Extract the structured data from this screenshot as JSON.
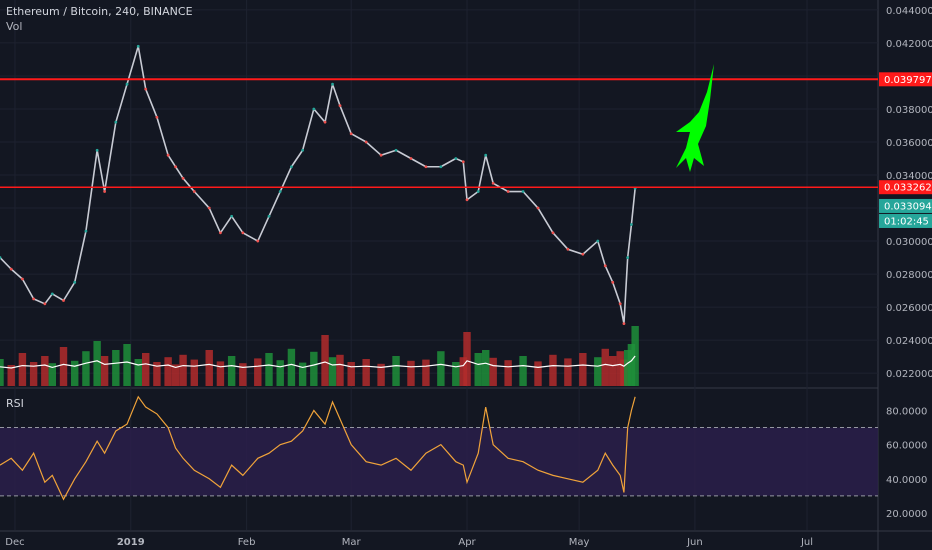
{
  "header": {
    "title": "Ethereum / Bitcoin, 240, BINANCE",
    "volume_label": "Vol",
    "rsi_label": "RSI"
  },
  "colors": {
    "background": "#131722",
    "grid": "#1e2230",
    "candle_up": "#26a69a",
    "candle_down": "#ef5350",
    "price_wick": "#c8cbd4",
    "volume_up": "#1f8f3a",
    "volume_down": "#b32b2b",
    "volume_ma": "#ffffff",
    "resistance": "#ff1a1a",
    "rsi_line": "#f0a33a",
    "rsi_band": "#2a1f4a",
    "rocket": "#00ff00",
    "tag_last": "#26a69a"
  },
  "icons": {
    "annotation": "rocket-icon"
  },
  "chart_data": [
    {
      "type": "line",
      "title": "Ethereum / Bitcoin, 240, BINANCE",
      "x_ticks": [
        "Dec",
        "2019",
        "Feb",
        "Mar",
        "Apr",
        "May",
        "Jun",
        "Jul"
      ],
      "y_ticks": [
        "0.044000",
        "0.042000",
        "0.040000",
        "0.038000",
        "0.036000",
        "0.034000",
        "0.032000",
        "0.030000",
        "0.028000",
        "0.026000",
        "0.024000",
        "0.022000"
      ],
      "ylim": [
        0.0211,
        0.0446
      ],
      "xlim": [
        "2018-11-27",
        "2019-07-20"
      ],
      "grid": true,
      "series": [
        {
          "x": [
            "2018-11-27",
            "2018-11-30",
            "2018-12-03",
            "2018-12-06",
            "2018-12-09",
            "2018-12-11",
            "2018-12-14",
            "2018-12-17",
            "2018-12-20",
            "2018-12-23",
            "2018-12-25",
            "2018-12-28",
            "2018-12-31",
            "2019-01-03",
            "2019-01-05",
            "2019-01-08",
            "2019-01-11",
            "2019-01-13",
            "2019-01-15",
            "2019-01-18",
            "2019-01-22",
            "2019-01-25",
            "2019-01-28",
            "2019-01-31",
            "2019-02-04",
            "2019-02-07",
            "2019-02-10",
            "2019-02-13",
            "2019-02-16",
            "2019-02-19",
            "2019-02-22",
            "2019-02-24",
            "2019-02-26",
            "2019-03-01",
            "2019-03-05",
            "2019-03-09",
            "2019-03-13",
            "2019-03-17",
            "2019-03-21",
            "2019-03-25",
            "2019-03-29",
            "2019-03-31",
            "2019-04-01",
            "2019-04-04",
            "2019-04-06",
            "2019-04-08",
            "2019-04-12",
            "2019-04-16",
            "2019-04-20",
            "2019-04-24",
            "2019-04-28",
            "2019-05-02",
            "2019-05-06",
            "2019-05-08",
            "2019-05-10",
            "2019-05-12",
            "2019-05-13",
            "2019-05-14",
            "2019-05-15",
            "2019-05-16"
          ],
          "values": [
            0.029,
            0.0283,
            0.0277,
            0.0265,
            0.0262,
            0.0268,
            0.0264,
            0.0275,
            0.0306,
            0.0355,
            0.033,
            0.0372,
            0.0395,
            0.0418,
            0.0392,
            0.0375,
            0.0352,
            0.0345,
            0.0338,
            0.033,
            0.032,
            0.0305,
            0.0315,
            0.0305,
            0.03,
            0.0315,
            0.033,
            0.0345,
            0.0355,
            0.038,
            0.0372,
            0.0395,
            0.0382,
            0.0365,
            0.036,
            0.0352,
            0.0355,
            0.035,
            0.0345,
            0.0345,
            0.035,
            0.0348,
            0.0325,
            0.033,
            0.0352,
            0.0335,
            0.033,
            0.033,
            0.032,
            0.0305,
            0.0295,
            0.0292,
            0.03,
            0.0285,
            0.0275,
            0.0262,
            0.025,
            0.029,
            0.031,
            0.0332
          ]
        }
      ],
      "annotations": [
        {
          "label": "0.039797",
          "value": 0.039797,
          "kind": "resistance"
        },
        {
          "label": "0.033262",
          "value": 0.033262,
          "kind": "resistance"
        },
        {
          "label": "0.033094",
          "value": 0.033094,
          "kind": "last-price"
        },
        {
          "label": "01:02:45",
          "kind": "countdown"
        }
      ]
    },
    {
      "type": "bar",
      "title": "Vol",
      "description_in_units": "relative volume, 0-1",
      "values": [
        0.45,
        0.35,
        0.55,
        0.4,
        0.5,
        0.38,
        0.65,
        0.42,
        0.58,
        0.75,
        0.5,
        0.6,
        0.7,
        0.45,
        0.55,
        0.4,
        0.48,
        0.36,
        0.52,
        0.44,
        0.6,
        0.41,
        0.5,
        0.38,
        0.46,
        0.55,
        0.43,
        0.62,
        0.39,
        0.57,
        0.85,
        0.48,
        0.52,
        0.4,
        0.45,
        0.37,
        0.5,
        0.42,
        0.44,
        0.58,
        0.4,
        0.48,
        0.9,
        0.55,
        0.6,
        0.47,
        0.43,
        0.5,
        0.41,
        0.52,
        0.46,
        0.55,
        0.48,
        0.62,
        0.5,
        0.58,
        0.44,
        0.6,
        0.7,
        1.0
      ],
      "ma_values": [
        0.32,
        0.3,
        0.34,
        0.33,
        0.35,
        0.31,
        0.36,
        0.33,
        0.38,
        0.42,
        0.36,
        0.38,
        0.4,
        0.35,
        0.37,
        0.33,
        0.35,
        0.31,
        0.34,
        0.33,
        0.36,
        0.32,
        0.34,
        0.31,
        0.33,
        0.35,
        0.32,
        0.36,
        0.31,
        0.35,
        0.4,
        0.35,
        0.36,
        0.32,
        0.33,
        0.31,
        0.34,
        0.32,
        0.33,
        0.36,
        0.32,
        0.34,
        0.42,
        0.36,
        0.38,
        0.34,
        0.32,
        0.34,
        0.31,
        0.34,
        0.33,
        0.35,
        0.33,
        0.36,
        0.34,
        0.36,
        0.33,
        0.38,
        0.42,
        0.5
      ]
    },
    {
      "type": "line",
      "title": "RSI",
      "y_ticks": [
        "80.0000",
        "60.0000",
        "40.0000",
        "20.0000"
      ],
      "ylim": [
        10,
        92
      ],
      "band": [
        30,
        70
      ],
      "values": [
        48,
        52,
        45,
        55,
        38,
        42,
        28,
        40,
        50,
        62,
        55,
        68,
        72,
        88,
        82,
        78,
        70,
        58,
        52,
        45,
        40,
        35,
        48,
        42,
        52,
        55,
        60,
        62,
        68,
        80,
        72,
        85,
        75,
        60,
        50,
        48,
        52,
        45,
        55,
        60,
        50,
        48,
        38,
        55,
        82,
        60,
        52,
        50,
        45,
        42,
        40,
        38,
        45,
        55,
        48,
        42,
        32,
        70,
        80,
        88
      ]
    }
  ]
}
